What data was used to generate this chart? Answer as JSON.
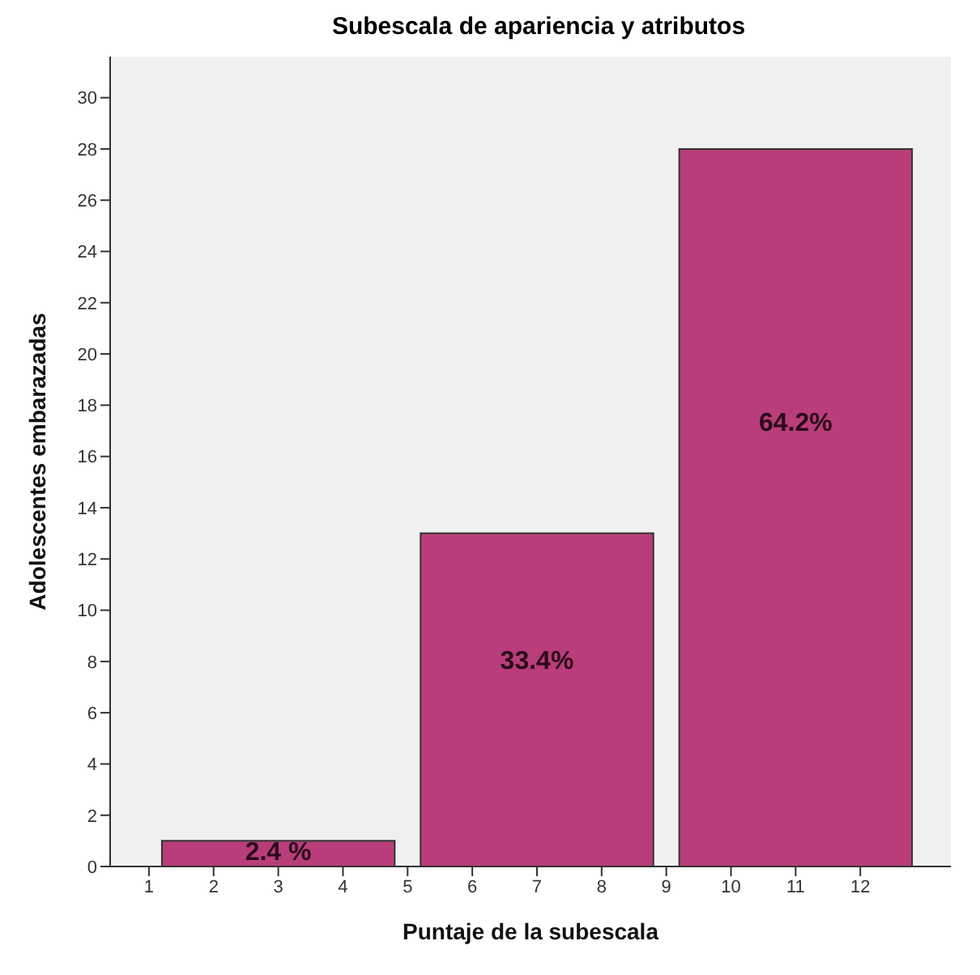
{
  "chart_data": {
    "type": "histogram",
    "title": "Subescala de apariencia y atributos",
    "xlabel": "Puntaje de la subescala",
    "ylabel": "Adolescentes embarazadas",
    "bins": [
      1,
      5,
      9,
      13
    ],
    "values": [
      1,
      13,
      28
    ],
    "color": "#b93d7a",
    "annotations": [
      "2.4 %",
      "33.4%",
      "64.2%"
    ],
    "xlim": [
      0.4,
      13.4
    ],
    "xticks": [
      1,
      2,
      3,
      4,
      5,
      6,
      7,
      8,
      9,
      10,
      11,
      12
    ],
    "ylim": [
      0,
      31.6
    ],
    "yticks": [
      0,
      2,
      4,
      6,
      8,
      10,
      12,
      14,
      16,
      18,
      20,
      22,
      24,
      26,
      28,
      30
    ],
    "grid": false
  }
}
